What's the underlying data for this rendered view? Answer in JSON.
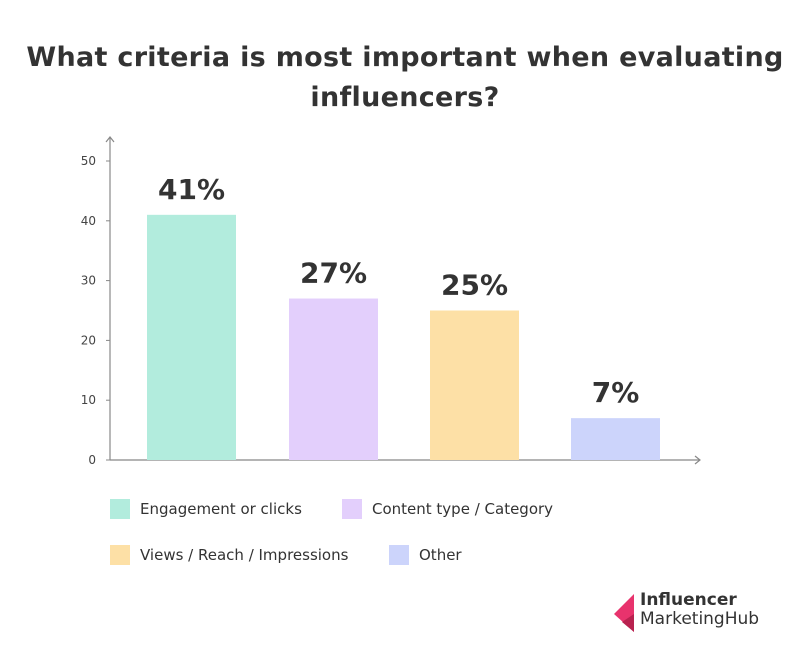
{
  "chart_data": {
    "type": "bar",
    "title": "What criteria is most important when evaluating influencers?",
    "categories": [
      "Engagement or clicks",
      "Content type / Category",
      "Views / Reach / Impressions",
      "Other"
    ],
    "values": [
      41,
      27,
      25,
      7
    ],
    "data_labels": [
      "41%",
      "27%",
      "25%",
      "7%"
    ],
    "colors": [
      "#b2ecdd",
      "#e3cffc",
      "#fde0a6",
      "#ccd4fb"
    ],
    "yticks": [
      "0",
      "10",
      "20",
      "30",
      "40",
      "50"
    ],
    "ylim": [
      0,
      50
    ],
    "xlabel": "",
    "ylabel": "",
    "grid": false,
    "legend": "bottom"
  },
  "logo": {
    "line1": "Influencer",
    "line2": "MarketingHub",
    "color": "#e8336d"
  }
}
